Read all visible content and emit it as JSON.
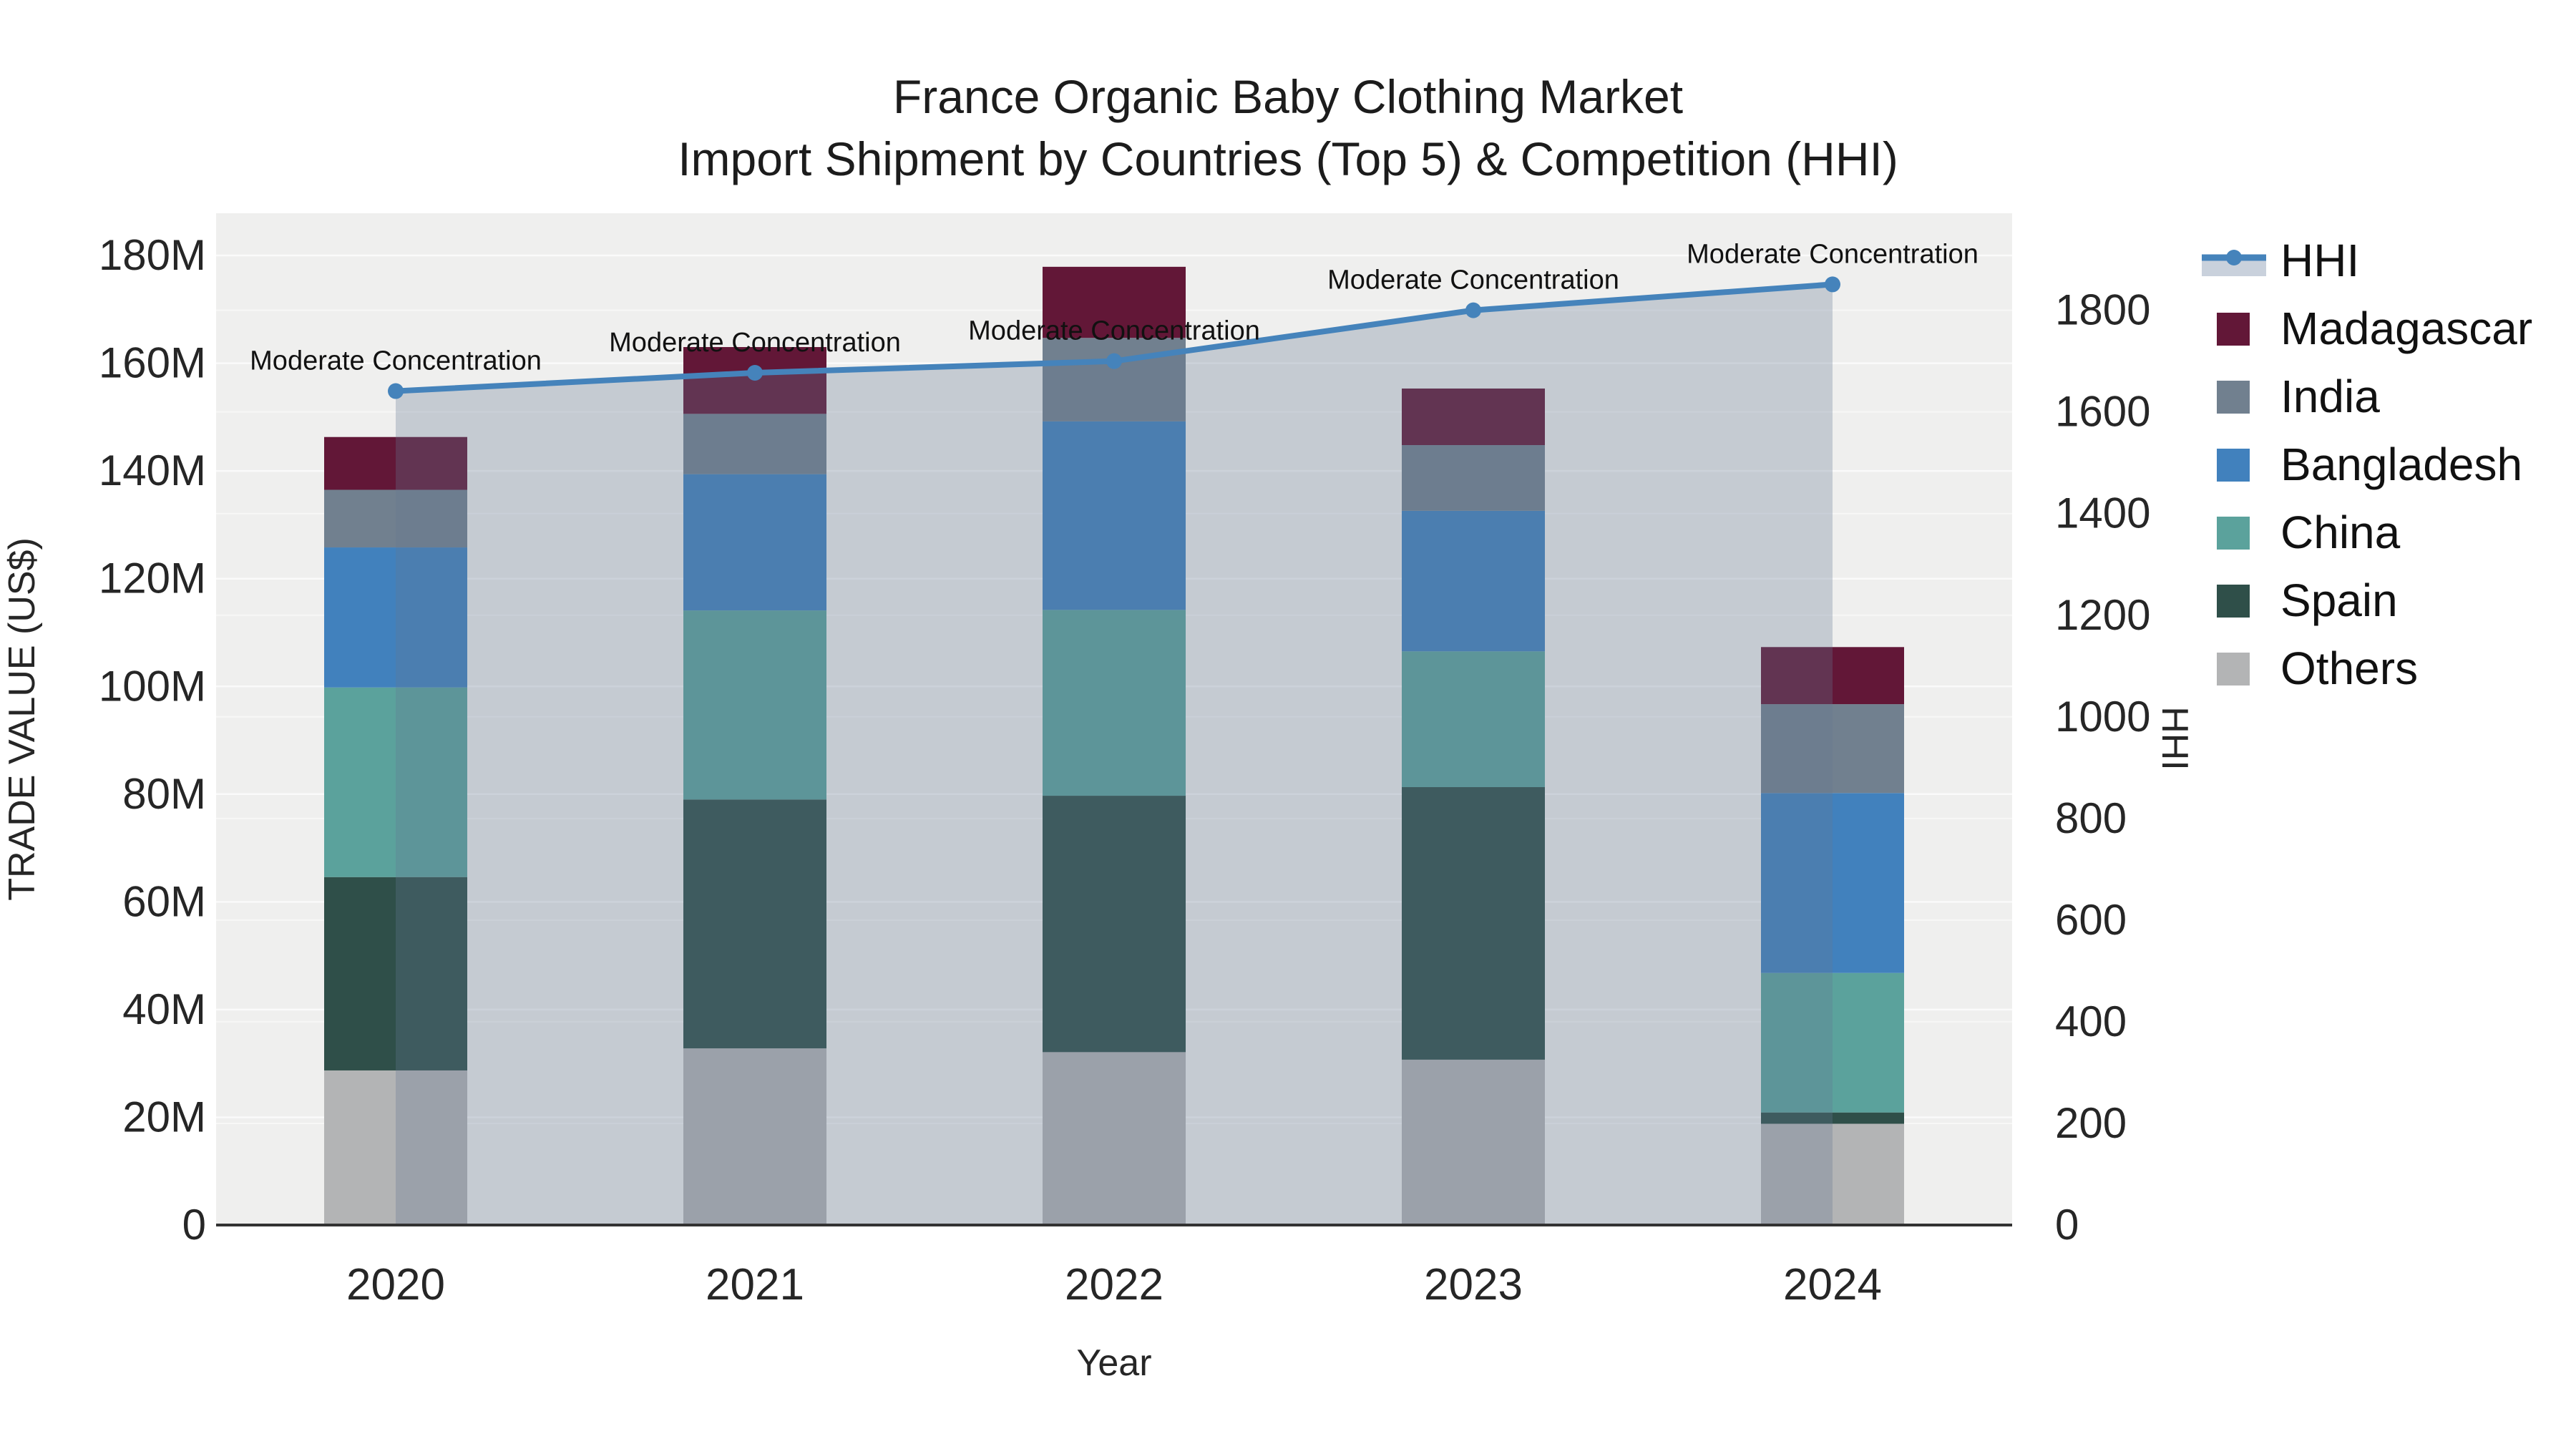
{
  "title": {
    "line1": "France Organic Baby Clothing Market",
    "line2": "Import Shipment by Countries (Top 5) & Competition (HHI)"
  },
  "axes": {
    "y_left": {
      "title": "TRADE VALUE (US$)",
      "tick_labels": [
        "0",
        "20M",
        "40M",
        "60M",
        "80M",
        "100M",
        "120M",
        "140M",
        "160M",
        "180M"
      ],
      "tick_values": [
        0,
        20,
        40,
        60,
        80,
        100,
        120,
        140,
        160,
        180
      ]
    },
    "y_right": {
      "title": "HHI",
      "tick_labels": [
        "0",
        "200",
        "400",
        "600",
        "800",
        "1000",
        "1200",
        "1400",
        "1600",
        "1800"
      ],
      "tick_values": [
        0,
        200,
        400,
        600,
        800,
        1000,
        1200,
        1400,
        1600,
        1800
      ]
    },
    "x": {
      "title": "Year",
      "categories": [
        "2020",
        "2021",
        "2022",
        "2023",
        "2024"
      ]
    }
  },
  "legend": [
    {
      "label": "HHI",
      "type": "line",
      "color": "#4583bb",
      "fill": "#c9d1dc"
    },
    {
      "label": "Madagascar",
      "type": "swatch",
      "color": "#621737"
    },
    {
      "label": "India",
      "type": "swatch",
      "color": "#71808f"
    },
    {
      "label": "Bangladesh",
      "type": "swatch",
      "color": "#4181bd"
    },
    {
      "label": "China",
      "type": "swatch",
      "color": "#5ba29c"
    },
    {
      "label": "Spain",
      "type": "swatch",
      "color": "#2f4f49"
    },
    {
      "label": "Others",
      "type": "swatch",
      "color": "#b3b4b5"
    }
  ],
  "chart_data": {
    "type": "combo-stacked-bar-line",
    "title": "France Organic Baby Clothing Market — Import Shipment by Countries (Top 5) & Competition (HHI)",
    "categories": [
      "2020",
      "2021",
      "2022",
      "2023",
      "2024"
    ],
    "value_unit": "M US$",
    "bar_series_bottom_to_top": [
      {
        "name": "Others",
        "color": "#b3b4b5",
        "values": [
          28.7,
          32.8,
          32.1,
          30.7,
          18.8
        ]
      },
      {
        "name": "Spain",
        "color": "#2f4f49",
        "values": [
          35.9,
          46.2,
          47.6,
          50.6,
          2.1
        ]
      },
      {
        "name": "China",
        "color": "#5ba29c",
        "values": [
          35.2,
          35.1,
          34.5,
          25.2,
          25.9
        ]
      },
      {
        "name": "Bangladesh",
        "color": "#4181bd",
        "values": [
          26.0,
          25.3,
          35.0,
          26.1,
          33.4
        ]
      },
      {
        "name": "India",
        "color": "#71808f",
        "values": [
          10.7,
          11.2,
          15.5,
          12.2,
          16.5
        ]
      },
      {
        "name": "Madagascar",
        "color": "#621737",
        "values": [
          9.8,
          12.4,
          13.2,
          10.5,
          10.6
        ]
      }
    ],
    "bar_totals": [
      146.3,
      163.0,
      177.9,
      155.3,
      107.3
    ],
    "line_series": {
      "name": "HHI",
      "axis": "right",
      "values": [
        1641,
        1677,
        1700,
        1800,
        1851
      ],
      "color": "#4583bb",
      "area_fill": "rgba(100,120,145,0.30)",
      "area_span": "from 2020 marker to 2024 marker, filled to zero"
    },
    "annotations": [
      {
        "text": "Moderate Concentration",
        "x": "2020"
      },
      {
        "text": "Moderate Concentration",
        "x": "2021"
      },
      {
        "text": "Moderate Concentration",
        "x": "2022"
      },
      {
        "text": "Moderate Concentration",
        "x": "2023"
      },
      {
        "text": "Moderate Concentration",
        "x": "2024"
      }
    ],
    "xlabel": "Year",
    "ylabel_left": "TRADE VALUE (US$)",
    "ylabel_right": "HHI",
    "ylim_left": [
      0,
      188
    ],
    "ylim_right": [
      0,
      1990
    ],
    "grid": true,
    "panel_background": "#efefee",
    "legend_position": "right"
  }
}
